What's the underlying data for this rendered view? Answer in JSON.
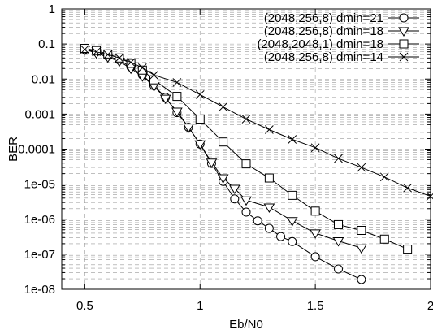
{
  "chart_data": {
    "type": "line",
    "title": "",
    "xlabel": "Eb/N0",
    "ylabel": "BER",
    "xlim": [
      0.4,
      2.0
    ],
    "ylim": [
      1e-08,
      1
    ],
    "yscale": "log",
    "grid": true,
    "legend_position": "top-right",
    "x_ticks": [
      0.5,
      1,
      1.5,
      2
    ],
    "x_tick_labels": [
      "0.5",
      "1",
      "1.5",
      "2"
    ],
    "y_ticks": [
      1,
      0.1,
      0.01,
      0.001,
      0.0001,
      1e-05,
      1e-06,
      1e-07,
      1e-08
    ],
    "y_tick_labels": [
      "1",
      "0.1",
      "0.01",
      "0.001",
      "0.0001",
      "1e-05",
      "1e-06",
      "1e-07",
      "1e-08"
    ],
    "series": [
      {
        "name": "(2048,256,8) dmin=21",
        "marker": "circle",
        "x": [
          0.5,
          0.55,
          0.6,
          0.65,
          0.7,
          0.75,
          0.8,
          0.85,
          0.9,
          0.95,
          1.0,
          1.05,
          1.1,
          1.15,
          1.2,
          1.25,
          1.3,
          1.35,
          1.4,
          1.5,
          1.6,
          1.7
        ],
        "y": [
          0.07,
          0.06,
          0.045,
          0.035,
          0.022,
          0.013,
          0.0065,
          0.003,
          0.0011,
          0.00042,
          0.00014,
          3.9e-05,
          1.2e-05,
          3.8e-06,
          1.6e-06,
          9e-07,
          5.5e-07,
          3.2e-07,
          2.3e-07,
          8.5e-08,
          3.8e-08,
          1.9e-08
        ]
      },
      {
        "name": "(2048,256,8) dmin=18",
        "marker": "triangle-down",
        "x": [
          0.5,
          0.55,
          0.6,
          0.65,
          0.7,
          0.75,
          0.8,
          0.85,
          0.9,
          0.95,
          1.0,
          1.05,
          1.1,
          1.15,
          1.2,
          1.3,
          1.4,
          1.5,
          1.6,
          1.7
        ],
        "y": [
          0.07,
          0.055,
          0.042,
          0.032,
          0.02,
          0.012,
          0.0063,
          0.0028,
          0.0012,
          0.00042,
          0.00014,
          4.2e-05,
          1.5e-05,
          7.5e-06,
          3.5e-06,
          2.2e-06,
          9e-07,
          4e-07,
          2.4e-07,
          1.5e-07
        ]
      },
      {
        "name": "(2048,2048,1) dmin=18",
        "marker": "square",
        "x": [
          0.5,
          0.55,
          0.6,
          0.65,
          0.7,
          0.75,
          0.8,
          0.9,
          1.0,
          1.1,
          1.2,
          1.3,
          1.4,
          1.5,
          1.6,
          1.7,
          1.8,
          1.9
        ],
        "y": [
          0.075,
          0.065,
          0.052,
          0.04,
          0.028,
          0.018,
          0.0095,
          0.0032,
          0.00072,
          0.00016,
          3.8e-05,
          1.5e-05,
          4.8e-06,
          1.7e-06,
          7e-07,
          4.8e-07,
          2.7e-07,
          1.4e-07
        ]
      },
      {
        "name": "(2048,256,8) dmin=14",
        "marker": "x",
        "x": [
          0.5,
          0.55,
          0.6,
          0.65,
          0.7,
          0.75,
          0.8,
          0.9,
          1.0,
          1.1,
          1.2,
          1.3,
          1.4,
          1.5,
          1.6,
          1.7,
          1.8,
          1.9,
          2.0
        ],
        "y": [
          0.07,
          0.06,
          0.05,
          0.04,
          0.03,
          0.021,
          0.013,
          0.008,
          0.0036,
          0.0016,
          0.00072,
          0.00036,
          0.00019,
          0.00011,
          5.4e-05,
          3e-05,
          1.6e-05,
          7.8e-06,
          4.5e-06
        ]
      }
    ]
  }
}
